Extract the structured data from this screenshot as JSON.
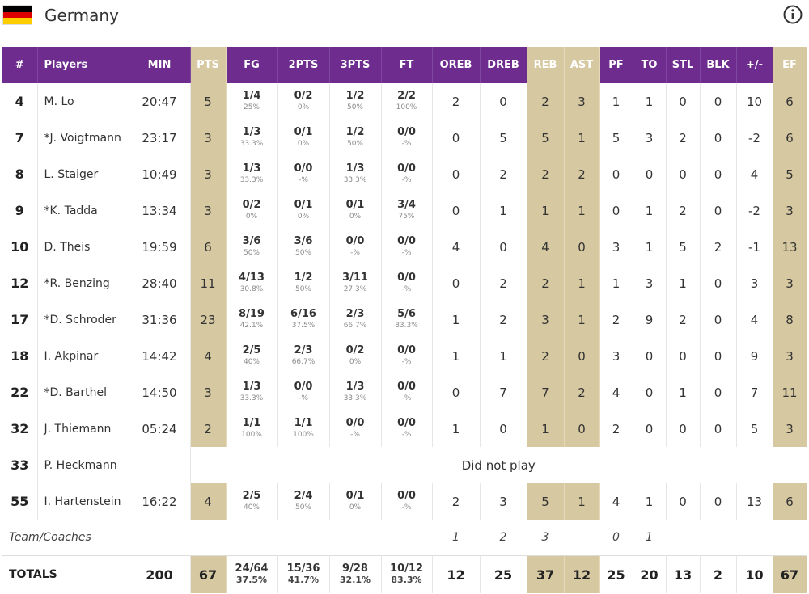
{
  "team": {
    "name": "Germany",
    "flag_colors": [
      "#000000",
      "#dd0000",
      "#ffce00"
    ]
  },
  "colors": {
    "header_bg": "#6d2c8e",
    "highlight": "#d6c8a0"
  },
  "headers": [
    "#",
    "Players",
    "MIN",
    "PTS",
    "FG",
    "2PTS",
    "3PTS",
    "FT",
    "OREB",
    "DREB",
    "REB",
    "AST",
    "PF",
    "TO",
    "STL",
    "BLK",
    "+/-",
    "EF"
  ],
  "players": [
    {
      "no": "4",
      "name": "M. Lo",
      "min": "20:47",
      "pts": "5",
      "fg": [
        "1/4",
        "25%"
      ],
      "p2": [
        "0/2",
        "0%"
      ],
      "p3": [
        "1/2",
        "50%"
      ],
      "ft": [
        "2/2",
        "100%"
      ],
      "oreb": "2",
      "dreb": "0",
      "reb": "2",
      "ast": "3",
      "pf": "1",
      "to": "1",
      "stl": "0",
      "blk": "0",
      "pm": "10",
      "ef": "6"
    },
    {
      "no": "7",
      "name": "*J. Voigtmann",
      "min": "23:17",
      "pts": "3",
      "fg": [
        "1/3",
        "33.3%"
      ],
      "p2": [
        "0/1",
        "0%"
      ],
      "p3": [
        "1/2",
        "50%"
      ],
      "ft": [
        "0/0",
        "-%"
      ],
      "oreb": "0",
      "dreb": "5",
      "reb": "5",
      "ast": "1",
      "pf": "5",
      "to": "3",
      "stl": "2",
      "blk": "0",
      "pm": "-2",
      "ef": "6"
    },
    {
      "no": "8",
      "name": "L. Staiger",
      "min": "10:49",
      "pts": "3",
      "fg": [
        "1/3",
        "33.3%"
      ],
      "p2": [
        "0/0",
        "-%"
      ],
      "p3": [
        "1/3",
        "33.3%"
      ],
      "ft": [
        "0/0",
        "-%"
      ],
      "oreb": "0",
      "dreb": "2",
      "reb": "2",
      "ast": "2",
      "pf": "0",
      "to": "0",
      "stl": "0",
      "blk": "0",
      "pm": "4",
      "ef": "5"
    },
    {
      "no": "9",
      "name": "*K. Tadda",
      "min": "13:34",
      "pts": "3",
      "fg": [
        "0/2",
        "0%"
      ],
      "p2": [
        "0/1",
        "0%"
      ],
      "p3": [
        "0/1",
        "0%"
      ],
      "ft": [
        "3/4",
        "75%"
      ],
      "oreb": "0",
      "dreb": "1",
      "reb": "1",
      "ast": "1",
      "pf": "0",
      "to": "1",
      "stl": "2",
      "blk": "0",
      "pm": "-2",
      "ef": "3"
    },
    {
      "no": "10",
      "name": "D. Theis",
      "min": "19:59",
      "pts": "6",
      "fg": [
        "3/6",
        "50%"
      ],
      "p2": [
        "3/6",
        "50%"
      ],
      "p3": [
        "0/0",
        "-%"
      ],
      "ft": [
        "0/0",
        "-%"
      ],
      "oreb": "4",
      "dreb": "0",
      "reb": "4",
      "ast": "0",
      "pf": "3",
      "to": "1",
      "stl": "5",
      "blk": "2",
      "pm": "-1",
      "ef": "13"
    },
    {
      "no": "12",
      "name": "*R. Benzing",
      "min": "28:40",
      "pts": "11",
      "fg": [
        "4/13",
        "30.8%"
      ],
      "p2": [
        "1/2",
        "50%"
      ],
      "p3": [
        "3/11",
        "27.3%"
      ],
      "ft": [
        "0/0",
        "-%"
      ],
      "oreb": "0",
      "dreb": "2",
      "reb": "2",
      "ast": "1",
      "pf": "1",
      "to": "3",
      "stl": "1",
      "blk": "0",
      "pm": "3",
      "ef": "3"
    },
    {
      "no": "17",
      "name": "*D. Schroder",
      "min": "31:36",
      "pts": "23",
      "fg": [
        "8/19",
        "42.1%"
      ],
      "p2": [
        "6/16",
        "37.5%"
      ],
      "p3": [
        "2/3",
        "66.7%"
      ],
      "ft": [
        "5/6",
        "83.3%"
      ],
      "oreb": "1",
      "dreb": "2",
      "reb": "3",
      "ast": "1",
      "pf": "2",
      "to": "9",
      "stl": "2",
      "blk": "0",
      "pm": "4",
      "ef": "8"
    },
    {
      "no": "18",
      "name": "I. Akpinar",
      "min": "14:42",
      "pts": "4",
      "fg": [
        "2/5",
        "40%"
      ],
      "p2": [
        "2/3",
        "66.7%"
      ],
      "p3": [
        "0/2",
        "0%"
      ],
      "ft": [
        "0/0",
        "-%"
      ],
      "oreb": "1",
      "dreb": "1",
      "reb": "2",
      "ast": "0",
      "pf": "3",
      "to": "0",
      "stl": "0",
      "blk": "0",
      "pm": "9",
      "ef": "3"
    },
    {
      "no": "22",
      "name": "*D. Barthel",
      "min": "14:50",
      "pts": "3",
      "fg": [
        "1/3",
        "33.3%"
      ],
      "p2": [
        "0/0",
        "-%"
      ],
      "p3": [
        "1/3",
        "33.3%"
      ],
      "ft": [
        "0/0",
        "-%"
      ],
      "oreb": "0",
      "dreb": "7",
      "reb": "7",
      "ast": "2",
      "pf": "4",
      "to": "0",
      "stl": "1",
      "blk": "0",
      "pm": "7",
      "ef": "11"
    },
    {
      "no": "32",
      "name": "J. Thiemann",
      "min": "05:24",
      "pts": "2",
      "fg": [
        "1/1",
        "100%"
      ],
      "p2": [
        "1/1",
        "100%"
      ],
      "p3": [
        "0/0",
        "-%"
      ],
      "ft": [
        "0/0",
        "-%"
      ],
      "oreb": "1",
      "dreb": "0",
      "reb": "1",
      "ast": "0",
      "pf": "2",
      "to": "0",
      "stl": "0",
      "blk": "0",
      "pm": "5",
      "ef": "3"
    },
    {
      "no": "33",
      "name": "P. Heckmann",
      "dnp": "Did not play"
    },
    {
      "no": "55",
      "name": "I. Hartenstein",
      "min": "16:22",
      "pts": "4",
      "fg": [
        "2/5",
        "40%"
      ],
      "p2": [
        "2/4",
        "50%"
      ],
      "p3": [
        "0/1",
        "0%"
      ],
      "ft": [
        "0/0",
        "-%"
      ],
      "oreb": "2",
      "dreb": "3",
      "reb": "5",
      "ast": "1",
      "pf": "4",
      "to": "1",
      "stl": "0",
      "blk": "0",
      "pm": "13",
      "ef": "6"
    }
  ],
  "team_coaches": {
    "label": "Team/Coaches",
    "oreb": "1",
    "dreb": "2",
    "reb": "3",
    "pf": "0",
    "to": "1"
  },
  "totals": {
    "label": "TOTALS",
    "min": "200",
    "pts": "67",
    "fg": [
      "24/64",
      "37.5%"
    ],
    "p2": [
      "15/36",
      "41.7%"
    ],
    "p3": [
      "9/28",
      "32.1%"
    ],
    "ft": [
      "10/12",
      "83.3%"
    ],
    "oreb": "12",
    "dreb": "25",
    "reb": "37",
    "ast": "12",
    "pf": "25",
    "to": "20",
    "stl": "13",
    "blk": "2",
    "pm": "10",
    "ef": "67"
  }
}
